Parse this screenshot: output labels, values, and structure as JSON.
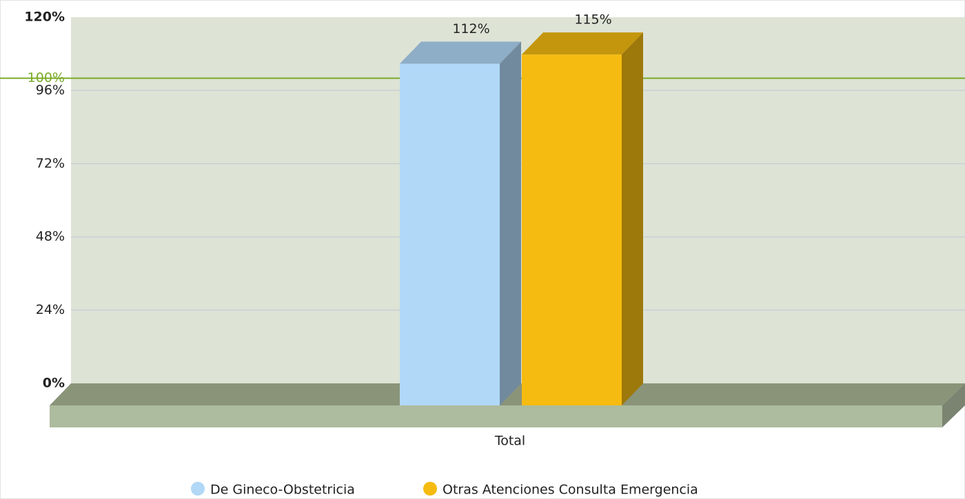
{
  "chart_data": {
    "type": "bar3d",
    "categories": [
      "Total"
    ],
    "series": [
      {
        "name": "De Gineco-Obstetricia",
        "color": "#b1d8f7",
        "values": [
          112
        ],
        "value_labels": [
          "112%"
        ]
      },
      {
        "name": "Otras Atenciones Consulta Emergencia",
        "color": "#f5bb10",
        "values": [
          115
        ],
        "value_labels": [
          "115%"
        ]
      }
    ],
    "ylim": [
      0,
      120
    ],
    "yticks": [
      {
        "value": 0,
        "label": "0%"
      },
      {
        "value": 24,
        "label": "24%"
      },
      {
        "value": 48,
        "label": "48%"
      },
      {
        "value": 72,
        "label": "72%"
      },
      {
        "value": 96,
        "label": "96%"
      },
      {
        "value": 120,
        "label": "120%"
      }
    ],
    "grid": true,
    "trendline": {
      "value": 100,
      "label": "100%",
      "color": "#7aab2a"
    },
    "legend": "bottom"
  }
}
